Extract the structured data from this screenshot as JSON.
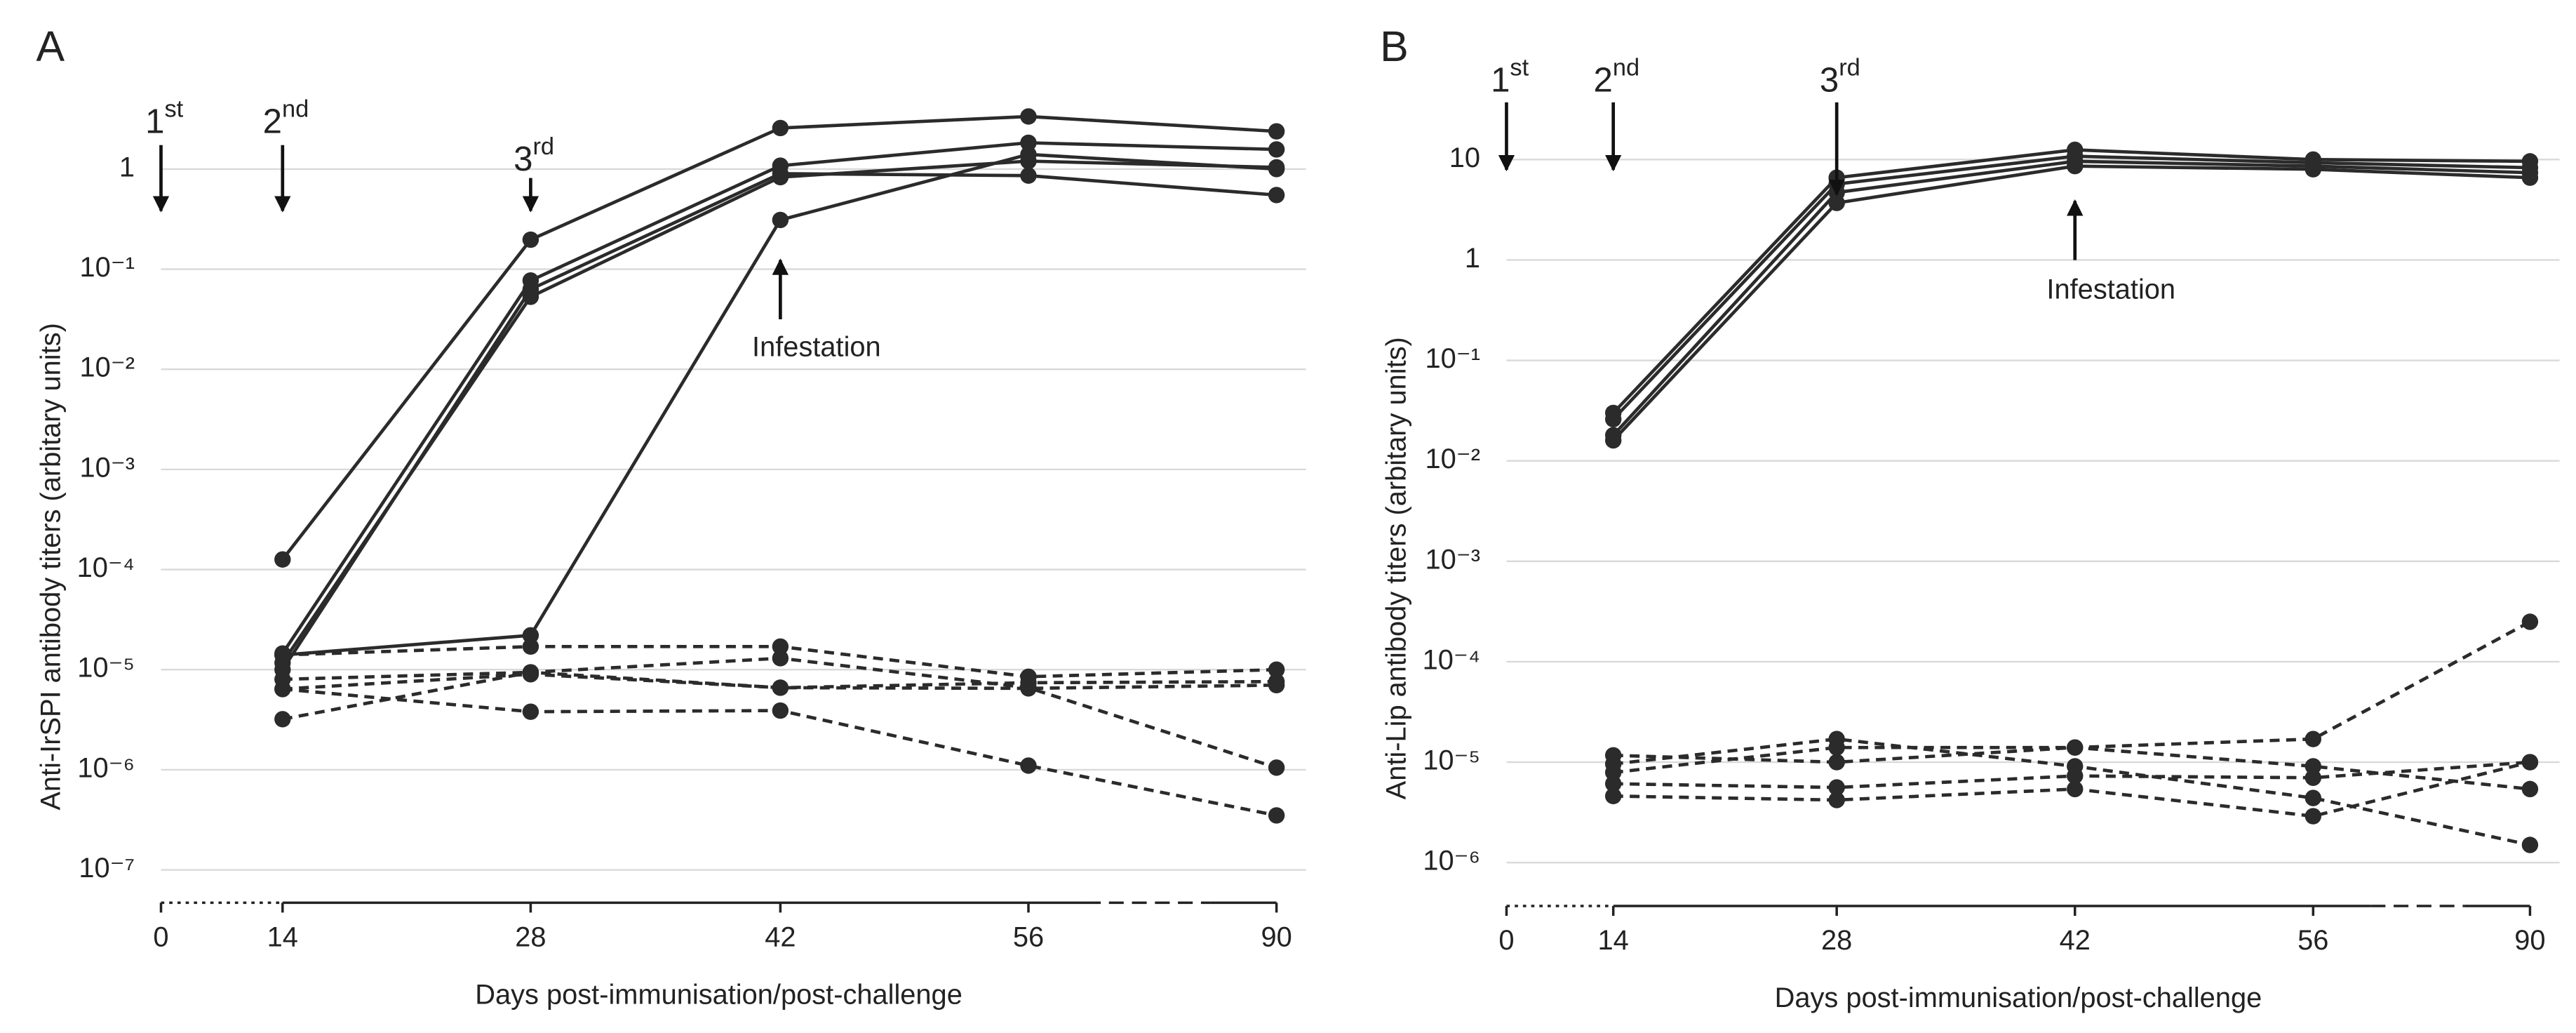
{
  "chart_data": [
    {
      "type": "line",
      "panel_label": "A",
      "y_label": "Anti-IrSPI antibody titers (arbitary units)",
      "x_label": "Days post-immunisation/post-challenge",
      "categories": [
        "0",
        "14",
        "28",
        "42",
        "56",
        "90"
      ],
      "log_y": true,
      "grid": true,
      "ylim": [
        4.7e-08,
        5
      ],
      "yticks": [
        {
          "value": 1e-07,
          "label": "10⁻⁷"
        },
        {
          "value": 1e-06,
          "label": "10⁻⁶"
        },
        {
          "value": 1e-05,
          "label": "10⁻⁵"
        },
        {
          "value": 0.0001,
          "label": "10⁻⁴"
        },
        {
          "value": 0.001,
          "label": "10⁻³"
        },
        {
          "value": 0.01,
          "label": "10⁻²"
        },
        {
          "value": 0.1,
          "label": "10⁻¹"
        },
        1
      ],
      "annotations": [
        {
          "text": "1st",
          "x": "0"
        },
        {
          "text": "2nd",
          "x": "14"
        },
        {
          "text": "3rd",
          "x": "28"
        },
        {
          "text": "Infestation",
          "x": "42"
        }
      ],
      "series": [
        {
          "color": "#2b2b2b",
          "line_style": "solid",
          "values": [
            null,
            0.000126,
            0.197,
            2.57,
            3.35,
            2.38
          ]
        },
        {
          "color": "#2b2b2b",
          "line_style": "solid",
          "values": [
            null,
            1.45e-05,
            0.077,
            1.08,
            1.83,
            1.57
          ]
        },
        {
          "color": "#2b2b2b",
          "line_style": "solid",
          "values": [
            null,
            1.17e-05,
            0.053,
            0.83,
            1.2,
            1.04
          ]
        },
        {
          "color": "#2b2b2b",
          "line_style": "solid",
          "values": [
            null,
            1e-05,
            0.063,
            0.9,
            0.86,
            0.55
          ]
        },
        {
          "color": "#2b2b2b",
          "line_style": "solid",
          "values": [
            null,
            1.4e-05,
            2.2e-05,
            0.31,
            1.4,
            1
          ]
        },
        {
          "color": "#2b2b2b",
          "line_style": "dashed",
          "values": [
            null,
            1.4e-05,
            1.7e-05,
            1.7e-05,
            8.5e-06,
            1e-05
          ]
        },
        {
          "color": "#2b2b2b",
          "line_style": "dashed",
          "values": [
            null,
            8e-06,
            9.4e-06,
            1.3e-05,
            6.6e-06,
            1.05e-06
          ]
        },
        {
          "color": "#2b2b2b",
          "line_style": "dashed",
          "values": [
            null,
            6.4e-06,
            9e-06,
            6.6e-06,
            7.4e-06,
            7.6e-06
          ]
        },
        {
          "color": "#2b2b2b",
          "line_style": "dashed",
          "values": [
            null,
            3.2e-06,
            9.4e-06,
            6.6e-06,
            6.5e-06,
            7e-06
          ]
        },
        {
          "color": "#2b2b2b",
          "line_style": "dashed",
          "values": [
            null,
            6.4e-06,
            3.8e-06,
            3.9e-06,
            1.1e-06,
            3.5e-07
          ]
        }
      ]
    },
    {
      "type": "line",
      "panel_label": "B",
      "y_label": "Anti-Lip antibody titers (arbitary units)",
      "x_label": "Days post-immunisation/post-challenge",
      "categories": [
        "0",
        "14",
        "28",
        "42",
        "56",
        "90"
      ],
      "log_y": true,
      "grid": true,
      "ylim": [
        3.7e-07,
        40
      ],
      "yticks": [
        {
          "value": 1e-06,
          "label": "10⁻⁶"
        },
        {
          "value": 1e-05,
          "label": "10⁻⁵"
        },
        {
          "value": 0.0001,
          "label": "10⁻⁴"
        },
        {
          "value": 0.001,
          "label": "10⁻³"
        },
        {
          "value": 0.01,
          "label": "10⁻²"
        },
        {
          "value": 0.1,
          "label": "10⁻¹"
        },
        1,
        10
      ],
      "annotations": [
        {
          "text": "1st",
          "x": "0"
        },
        {
          "text": "2nd",
          "x": "14"
        },
        {
          "text": "3rd",
          "x": "28"
        },
        {
          "text": "Infestation",
          "x": "42"
        }
      ],
      "series": [
        {
          "color": "#2b2b2b",
          "line_style": "solid",
          "values": [
            null,
            0.03,
            6.6,
            12.5,
            10,
            9.6
          ]
        },
        {
          "color": "#2b2b2b",
          "line_style": "solid",
          "values": [
            null,
            0.026,
            5.7,
            10.8,
            9.3,
            8.3
          ]
        },
        {
          "color": "#2b2b2b",
          "line_style": "solid",
          "values": [
            null,
            0.018,
            4.7,
            9.6,
            8.6,
            7.4
          ]
        },
        {
          "color": "#2b2b2b",
          "line_style": "solid",
          "values": [
            null,
            0.016,
            3.7,
            8.6,
            8,
            6.6
          ]
        },
        {
          "color": "#2b2b2b",
          "line_style": "dashed",
          "values": [
            null,
            1.17e-05,
            1e-05,
            1.4e-05,
            1.7e-05,
            0.00025
          ]
        },
        {
          "color": "#2b2b2b",
          "line_style": "dashed",
          "values": [
            null,
            9.6e-06,
            1.7e-05,
            9.1e-06,
            4.4e-06,
            1.5e-06
          ]
        },
        {
          "color": "#2b2b2b",
          "line_style": "dashed",
          "values": [
            null,
            7.9e-06,
            1.4e-05,
            1.4e-05,
            9.1e-06,
            5.4e-06
          ]
        },
        {
          "color": "#2b2b2b",
          "line_style": "dashed",
          "values": [
            null,
            6.1e-06,
            5.6e-06,
            7.3e-06,
            7e-06,
            1e-05
          ]
        },
        {
          "color": "#2b2b2b",
          "line_style": "dashed",
          "values": [
            null,
            4.6e-06,
            4.2e-06,
            5.4e-06,
            2.9e-06,
            1e-05
          ]
        }
      ]
    }
  ]
}
